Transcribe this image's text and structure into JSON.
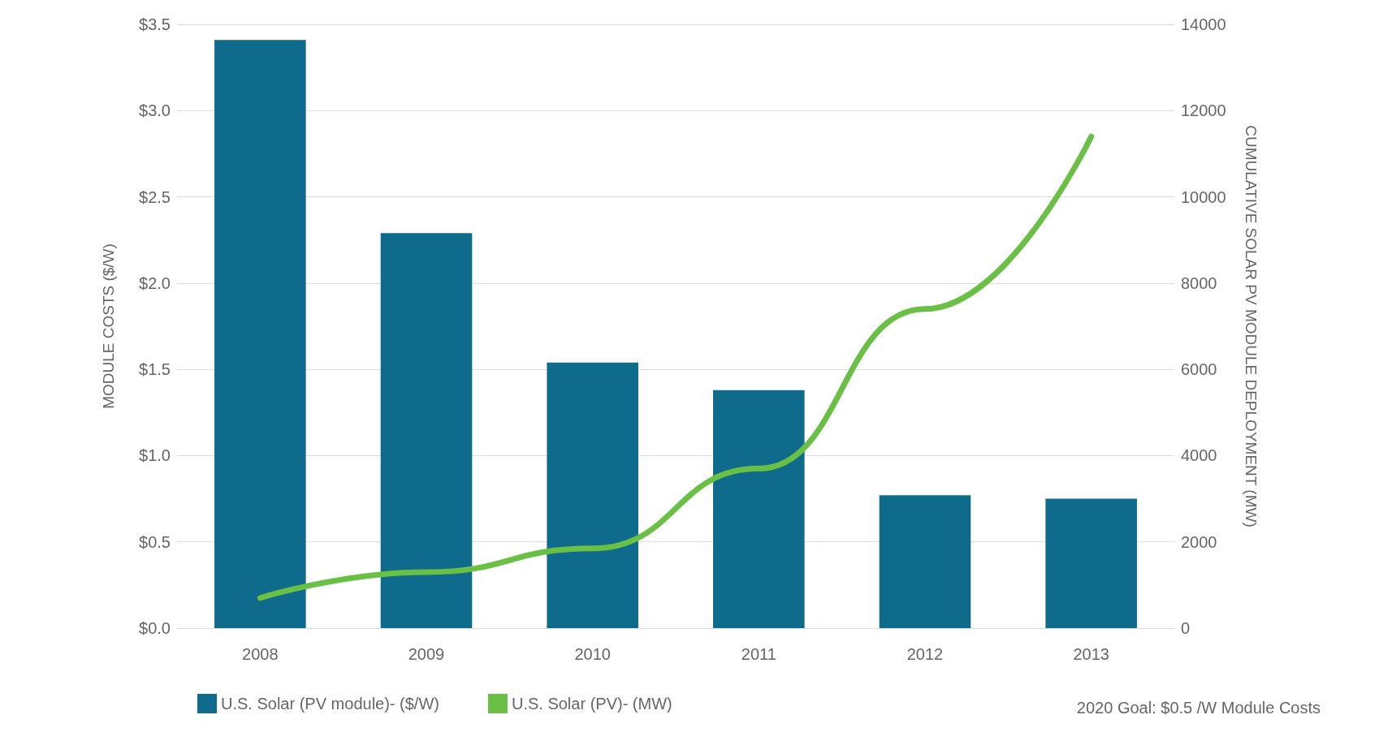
{
  "chart_data": {
    "type": "bar",
    "categories": [
      "2008",
      "2009",
      "2010",
      "2011",
      "2012",
      "2013"
    ],
    "series": [
      {
        "name": "U.S. Solar (PV module)- ($/W)",
        "color": "#0e6b8c",
        "values": [
          3.41,
          2.29,
          1.54,
          1.38,
          0.77,
          0.75
        ]
      },
      {
        "name": "U.S. Solar (PV)- (MW)",
        "type": "line",
        "axis": "y2",
        "color": "#6abf45",
        "values": [
          700,
          1300,
          1850,
          3700,
          7400,
          11400
        ]
      }
    ],
    "ylabel": "MODULE COSTS ($/W)",
    "y2label": "CUMULATIVE SOLAR PV MODULE DEPLOYMENT (MW)",
    "ylim": [
      0,
      3.5
    ],
    "yticks": [
      {
        "value": 0,
        "label": "$0.0"
      },
      {
        "value": 0.5,
        "label": "$0.5"
      },
      {
        "value": 1,
        "label": "$1.0"
      },
      {
        "value": 1.5,
        "label": "$1.5"
      },
      {
        "value": 2,
        "label": "$2.0"
      },
      {
        "value": 2.5,
        "label": "$2.5"
      },
      {
        "value": 3,
        "label": "$3.0"
      },
      {
        "value": 3.5,
        "label": "$3.5"
      }
    ],
    "y2lim": [
      0,
      14000
    ],
    "y2ticks": [
      0,
      2000,
      4000,
      6000,
      8000,
      10000,
      12000,
      14000
    ],
    "grid": "y",
    "legend": "bottom",
    "marker": "none",
    "annotations": [
      "2020 Goal: $0.5 /W Module Costs"
    ]
  }
}
